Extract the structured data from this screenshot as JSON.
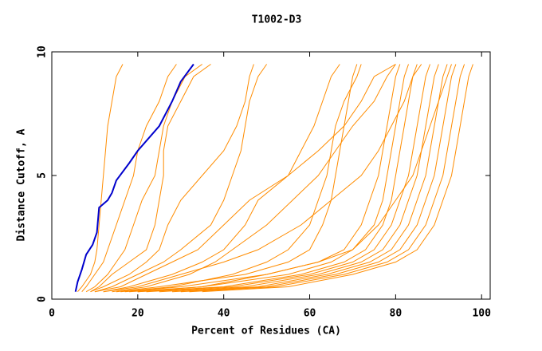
{
  "chart_data": {
    "type": "line",
    "title": "T1002-D3",
    "x_label": "Percent of Residues (CA)",
    "y_label": "Distance Cutoff, A",
    "xlim": [
      0,
      102
    ],
    "ylim": [
      0,
      10
    ],
    "xticks": [
      0,
      20,
      40,
      60,
      80,
      100
    ],
    "yticks": [
      0,
      5,
      10
    ],
    "series": [
      {
        "color": "#ff8c00",
        "values": [
          0.3,
          0.5,
          1,
          1.5,
          2,
          3,
          4,
          5,
          6,
          7,
          8,
          9,
          9.5
        ],
        "x": [
          6,
          7,
          9,
          10,
          10.5,
          11,
          11.5,
          12,
          12.5,
          13,
          14,
          15,
          16.5
        ]
      },
      {
        "color": "#ff8c00",
        "values": [
          0.3,
          0.5,
          1,
          1.5,
          2,
          3,
          4,
          5,
          6,
          7,
          8,
          9,
          9.5
        ],
        "x": [
          7,
          8,
          10,
          12,
          13,
          15,
          17,
          19,
          20,
          22,
          25,
          27,
          29
        ]
      },
      {
        "color": "#ff8c00",
        "values": [
          0.3,
          0.5,
          1,
          1.5,
          2,
          3,
          4,
          5,
          6,
          7,
          8,
          9,
          9.5
        ],
        "x": [
          8,
          10,
          13,
          15,
          17,
          19,
          21,
          24,
          25,
          26,
          28,
          31,
          35
        ]
      },
      {
        "color": "#ff8c00",
        "values": [
          0.3,
          0.5,
          1,
          1.5,
          2,
          3,
          4,
          5,
          6,
          7,
          8,
          9,
          9.5
        ],
        "x": [
          9,
          11,
          14,
          18,
          22,
          24,
          25,
          26,
          26,
          27,
          30,
          33,
          37
        ]
      },
      {
        "color": "#ff8c00",
        "values": [
          0.3,
          0.5,
          1,
          1.5,
          2,
          3,
          4,
          5,
          6,
          7,
          8,
          9,
          9.5
        ],
        "x": [
          10,
          14,
          20,
          26,
          30,
          37,
          40,
          42,
          44,
          45,
          46,
          48,
          50
        ]
      },
      {
        "color": "#ff8c00",
        "values": [
          0.3,
          0.5,
          1,
          1.5,
          2,
          3,
          4,
          5,
          6,
          7,
          8,
          9,
          9.5
        ],
        "x": [
          12,
          18,
          28,
          35,
          40,
          45,
          48,
          55,
          58,
          61,
          63,
          65,
          67
        ]
      },
      {
        "color": "#ff8c00",
        "values": [
          0.3,
          0.5,
          1,
          1.5,
          2,
          3,
          4,
          5,
          6,
          7,
          8,
          9,
          9.5
        ],
        "x": [
          15,
          25,
          45,
          55,
          60,
          63,
          65,
          66,
          67,
          68,
          69,
          70,
          71
        ]
      },
      {
        "color": "#ff8c00",
        "values": [
          0.3,
          0.5,
          1,
          1.5,
          2,
          3,
          4,
          5,
          6,
          7,
          8,
          9,
          9.5
        ],
        "x": [
          17,
          30,
          50,
          62,
          68,
          72,
          74,
          76,
          77,
          78,
          79,
          80,
          81
        ]
      },
      {
        "color": "#ff8c00",
        "values": [
          0.3,
          0.5,
          1,
          1.5,
          2,
          3,
          4,
          5,
          6,
          7,
          8,
          9,
          9.5
        ],
        "x": [
          18,
          35,
          55,
          65,
          70,
          75,
          77,
          78,
          79,
          80,
          81,
          82,
          83
        ]
      },
      {
        "color": "#ff8c00",
        "values": [
          0.3,
          0.5,
          1,
          1.5,
          2,
          3,
          4,
          5,
          6,
          7,
          8,
          9,
          9.5
        ],
        "x": [
          20,
          40,
          58,
          68,
          73,
          77,
          79,
          80,
          81,
          82,
          83,
          84,
          85
        ]
      },
      {
        "color": "#ff8c00",
        "values": [
          0.3,
          0.5,
          1,
          1.5,
          2,
          3,
          4,
          5,
          6,
          7,
          8,
          9,
          9.5
        ],
        "x": [
          22,
          42,
          60,
          70,
          75,
          79,
          81,
          83,
          84,
          85,
          86,
          87,
          88
        ]
      },
      {
        "color": "#ff8c00",
        "values": [
          0.3,
          0.5,
          1,
          1.5,
          2,
          3,
          4,
          5,
          6,
          7,
          8,
          9,
          9.5
        ],
        "x": [
          25,
          45,
          62,
          72,
          77,
          81,
          83,
          85,
          86,
          87,
          88,
          89,
          90
        ]
      },
      {
        "color": "#ff8c00",
        "values": [
          0.3,
          0.5,
          1,
          1.5,
          2,
          3,
          4,
          5,
          6,
          7,
          8,
          9,
          9.5
        ],
        "x": [
          28,
          48,
          64,
          74,
          79,
          83,
          85,
          87,
          88,
          89,
          90,
          91,
          92
        ]
      },
      {
        "color": "#ff8c00",
        "values": [
          0.3,
          0.5,
          1,
          1.5,
          2,
          3,
          4,
          5,
          6,
          7,
          8,
          9,
          9.5
        ],
        "x": [
          30,
          50,
          66,
          76,
          81,
          85,
          87,
          89,
          90,
          91,
          92,
          93,
          94
        ]
      },
      {
        "color": "#ff8c00",
        "values": [
          0.3,
          0.5,
          1,
          1.5,
          2,
          3,
          4,
          5,
          6,
          7,
          8,
          9,
          9.5
        ],
        "x": [
          32,
          52,
          68,
          78,
          83,
          87,
          89,
          91,
          92,
          93,
          94,
          95,
          96
        ]
      },
      {
        "color": "#ff8c00",
        "values": [
          0.3,
          0.5,
          1,
          1.5,
          2,
          3,
          4,
          5,
          6,
          7,
          8,
          9,
          9.5
        ],
        "x": [
          35,
          55,
          70,
          80,
          85,
          89,
          91,
          93,
          94,
          95,
          96,
          97,
          98
        ]
      },
      {
        "color": "#ff8c00",
        "values": [
          0.3,
          0.5,
          1,
          1.5,
          2,
          3,
          4,
          5,
          6,
          7,
          8,
          9,
          9.5
        ],
        "x": [
          20,
          35,
          50,
          62,
          70,
          76,
          80,
          84,
          86,
          88,
          90,
          92,
          93
        ]
      },
      {
        "color": "#ff8c00",
        "values": [
          0.3,
          0.5,
          1,
          1.5,
          2,
          3,
          4,
          5,
          6,
          7,
          8,
          9,
          9.5
        ],
        "x": [
          12,
          20,
          30,
          40,
          48,
          58,
          65,
          72,
          76,
          79,
          82,
          84,
          86
        ]
      },
      {
        "color": "#ff8c00",
        "values": [
          0.3,
          0.5,
          1,
          1.5,
          2,
          3,
          4,
          5,
          6,
          7,
          8,
          9,
          9.5
        ],
        "x": [
          10,
          16,
          22,
          28,
          34,
          40,
          46,
          55,
          62,
          68,
          72,
          75,
          80
        ]
      },
      {
        "color": "#ff8c00",
        "values": [
          0.3,
          0.5,
          1,
          1.5,
          2,
          3,
          4,
          5,
          6,
          7,
          8,
          9,
          9.5
        ],
        "x": [
          9,
          12,
          18,
          22,
          25,
          27,
          30,
          35,
          40,
          43,
          45,
          46,
          47
        ]
      },
      {
        "color": "#ff8c00",
        "values": [
          0.3,
          0.5,
          1,
          1.5,
          2,
          3,
          4,
          5,
          6,
          7,
          8,
          9,
          9.5
        ],
        "x": [
          14,
          22,
          32,
          38,
          42,
          50,
          56,
          62,
          66,
          70,
          75,
          78,
          80
        ]
      },
      {
        "color": "#ff8c00",
        "values": [
          0.3,
          0.5,
          1,
          1.5,
          2,
          3,
          4,
          5,
          6,
          7,
          8,
          9,
          9.5
        ],
        "x": [
          16,
          28,
          42,
          50,
          55,
          60,
          62,
          64,
          65,
          66,
          68,
          71,
          72
        ]
      },
      {
        "color": "#0000cc",
        "values": [
          0.3,
          0.7,
          1.2,
          1.8,
          2.2,
          2.7,
          3.7,
          4,
          4.3,
          4.8,
          5.5,
          6,
          7,
          8,
          8.8,
          9.5
        ],
        "x": [
          5.5,
          6,
          7,
          8,
          9.5,
          10.5,
          11,
          13,
          14,
          15,
          18,
          20,
          25,
          28,
          30,
          33
        ]
      }
    ]
  }
}
